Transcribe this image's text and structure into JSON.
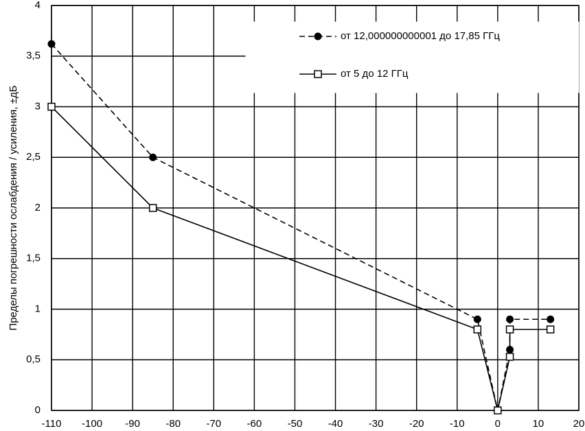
{
  "chart_data": {
    "type": "line",
    "y_label": "Пределы погрешности ослабдения / усиления,  ±дБ",
    "xlim": [
      -110,
      20
    ],
    "xticks": [
      -110,
      -100,
      -90,
      -80,
      -70,
      -60,
      -50,
      -40,
      -30,
      -20,
      -10,
      0,
      10,
      20
    ],
    "ylim": [
      0,
      4
    ],
    "yticks": [
      0,
      {
        "value": 0.5,
        "label": "0,5"
      },
      1,
      {
        "value": 1.5,
        "label": "1,5"
      },
      2,
      {
        "value": 2.5,
        "label": "2,5"
      },
      3,
      {
        "value": 3.5,
        "label": "3,5"
      },
      4
    ],
    "grid": true,
    "legend": "upper right",
    "series": [
      {
        "name": "от 12,000000000001  до 17,85 ГГц",
        "color": "#000000",
        "dash": true,
        "marker": "circle",
        "x": [
          -110,
          -85,
          -5,
          0,
          3,
          3,
          13
        ],
        "values": [
          3.62,
          2.5,
          0.9,
          0,
          0.6,
          0.9,
          0.9
        ]
      },
      {
        "name": "от 5 до 12 ГГц",
        "color": "#000000",
        "dash": false,
        "marker": "square",
        "x": [
          -110,
          -85,
          -5,
          0,
          3,
          3,
          13
        ],
        "values": [
          3,
          2,
          0.8,
          0,
          0.53,
          0.8,
          0.8
        ]
      }
    ]
  }
}
